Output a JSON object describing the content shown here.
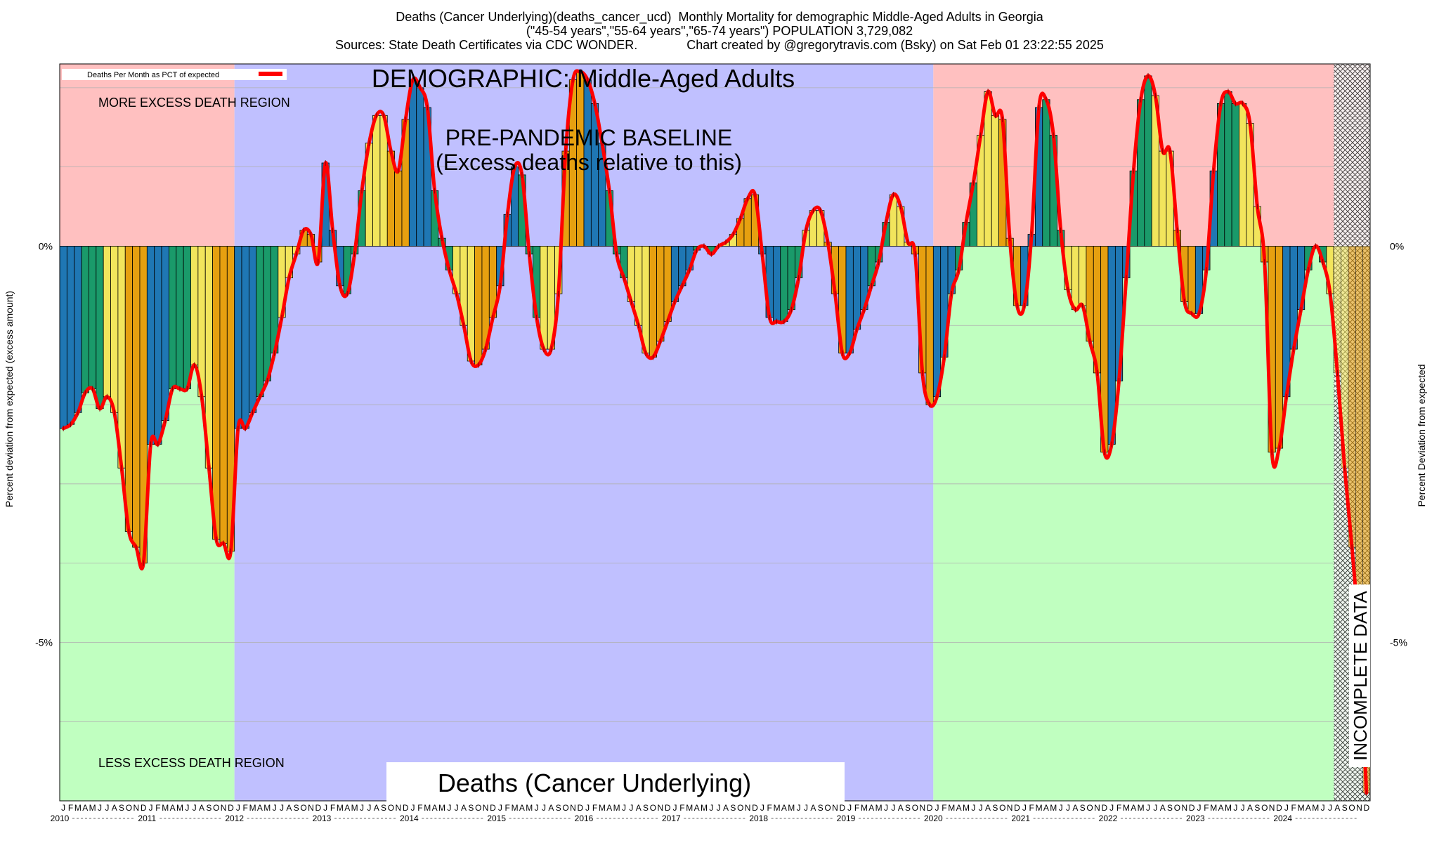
{
  "header": {
    "line1": "Deaths (Cancer Underlying)(deaths_cancer_ucd)  Monthly Mortality for demographic Middle-Aged Adults in Georgia",
    "line2": "(\"45-54 years\",\"55-64 years\",\"65-74 years\") POPULATION 3,729,082",
    "line3": "Sources: State Death Certificates via CDC WONDER.              Chart created by @gregorytravis.com (Bsky) on Sat Feb 01 23:22:55 2025"
  },
  "chart_data": {
    "type": "bar",
    "xlabel": "",
    "ylabel_left": "Percent deviation from expected (excess amount)",
    "ylabel_right": "Percent Deviation from expected",
    "ylim": [
      -7,
      2.3
    ],
    "yticks": [
      {
        "value": 0,
        "label": "0%"
      },
      {
        "value": -5,
        "label": "-5%"
      }
    ],
    "legend": {
      "label": "Deaths Per Month as PCT of expected",
      "position": "top-left"
    },
    "annotations": {
      "demographic": "DEMOGRAPHIC: Middle-Aged Adults",
      "baseline_line1": "PRE-PANDEMIC BASELINE",
      "baseline_line2": "(Excess deaths relative to this)",
      "more_region": "MORE EXCESS DEATH REGION",
      "less_region": "LESS EXCESS DEATH REGION",
      "incomplete": "INCOMPLETE DATA",
      "bottom_title": "Deaths (Cancer Underlying)"
    },
    "regions": {
      "more_color": "#ffc0c0",
      "less_color": "#c0ffc0",
      "baseline_color": "#c0c0ff",
      "baseline_years": [
        "2012",
        "2019"
      ],
      "incomplete_from": "2024-08"
    },
    "month_letters": [
      "J",
      "F",
      "M",
      "A",
      "M",
      "J",
      "J",
      "A",
      "S",
      "O",
      "N",
      "D"
    ],
    "years": [
      "2010",
      "2011",
      "2012",
      "2013",
      "2014",
      "2015",
      "2016",
      "2017",
      "2018",
      "2019",
      "2020",
      "2021",
      "2022",
      "2023",
      "2024"
    ],
    "season_colors": [
      "#1f77b4",
      "#1a9a6a",
      "#f2e55c",
      "#e6a010"
    ],
    "line_color": "#ff0000",
    "values": [
      -2.3,
      -2.25,
      -2.1,
      -1.85,
      -1.8,
      -2.05,
      -1.9,
      -2.1,
      -2.8,
      -3.6,
      -3.8,
      -4.0,
      -2.5,
      -2.5,
      -2.2,
      -1.8,
      -1.8,
      -1.8,
      -1.5,
      -1.9,
      -2.8,
      -3.7,
      -3.75,
      -3.85,
      -2.3,
      -2.3,
      -2.1,
      -1.9,
      -1.7,
      -1.35,
      -0.9,
      -0.4,
      -0.1,
      0.2,
      0.15,
      -0.2,
      1.05,
      0.2,
      -0.5,
      -0.6,
      -0.1,
      0.7,
      1.3,
      1.65,
      1.65,
      1.2,
      0.95,
      1.6,
      2.1,
      2.0,
      1.75,
      0.7,
      0.1,
      -0.3,
      -0.6,
      -1.0,
      -1.45,
      -1.5,
      -1.3,
      -0.9,
      -0.5,
      0.4,
      1.0,
      0.9,
      -0.1,
      -0.9,
      -1.3,
      -1.3,
      -0.6,
      1.2,
      2.1,
      2.2,
      2.1,
      1.8,
      1.3,
      0.7,
      -0.1,
      -0.4,
      -0.7,
      -1.0,
      -1.35,
      -1.4,
      -1.2,
      -0.95,
      -0.7,
      -0.5,
      -0.3,
      -0.05,
      0.0,
      -0.1,
      0.0,
      0.05,
      0.15,
      0.35,
      0.6,
      0.65,
      -0.1,
      -0.9,
      -0.95,
      -0.95,
      -0.8,
      -0.4,
      0.2,
      0.45,
      0.45,
      0.05,
      -0.6,
      -1.35,
      -1.35,
      -1.05,
      -0.8,
      -0.5,
      -0.2,
      0.3,
      0.65,
      0.5,
      0.05,
      -0.1,
      -1.6,
      -2.0,
      -1.9,
      -1.4,
      -0.6,
      -0.3,
      0.3,
      0.8,
      1.4,
      1.95,
      1.65,
      1.6,
      0.1,
      -0.75,
      -0.75,
      0.15,
      1.75,
      1.85,
      1.4,
      0.2,
      -0.55,
      -0.8,
      -0.75,
      -1.2,
      -1.6,
      -2.6,
      -2.5,
      -1.7,
      -0.4,
      0.95,
      1.85,
      2.15,
      1.9,
      1.2,
      1.2,
      0.2,
      -0.7,
      -0.85,
      -0.85,
      -0.3,
      0.95,
      1.8,
      1.95,
      1.8,
      1.8,
      1.55,
      0.5,
      -0.2,
      -2.6,
      -2.55,
      -1.9,
      -1.3,
      -0.8,
      -0.3,
      0.0,
      -0.2,
      -0.6,
      -1.6,
      -2.8,
      -3.8,
      -5.0,
      -6.9
    ]
  }
}
